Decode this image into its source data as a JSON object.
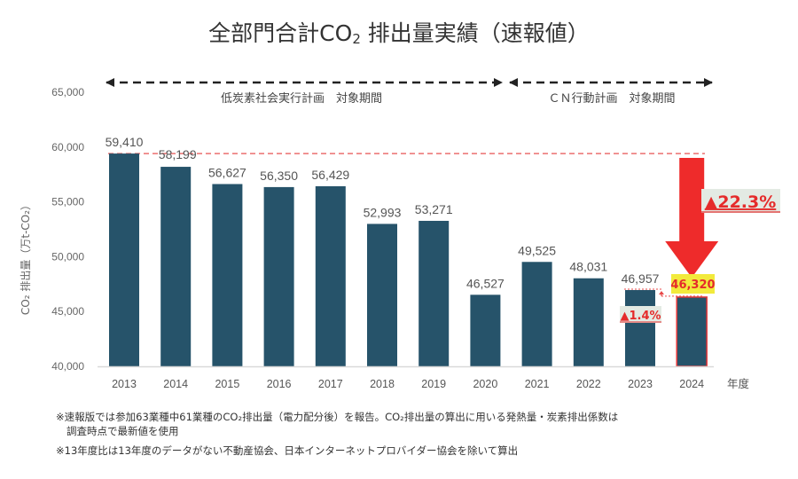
{
  "title": {
    "prefix": "全部門合計CO",
    "subscript": "2",
    "suffix": " 排出量実績（速報値）"
  },
  "chart_data": {
    "type": "bar",
    "title": "全部門合計CO2排出量実績（速報値）",
    "xlabel": "年度",
    "ylabel": "CO₂ 排出量（万t-CO₂）",
    "ylim": [
      40000,
      65000
    ],
    "yticks": [
      40000,
      45000,
      50000,
      55000,
      60000,
      65000
    ],
    "ytick_labels": [
      "40,000",
      "45,000",
      "50,000",
      "55,000",
      "60,000",
      "65,000"
    ],
    "grid": false,
    "categories": [
      "2013",
      "2014",
      "2015",
      "2016",
      "2017",
      "2018",
      "2019",
      "2020",
      "2021",
      "2022",
      "2023",
      "2024"
    ],
    "values": [
      59410,
      58199,
      56627,
      56350,
      56429,
      52993,
      53271,
      46527,
      49525,
      48031,
      46957,
      46320
    ],
    "value_labels": [
      "59,410",
      "58,199",
      "56,627",
      "56,350",
      "56,429",
      "52,993",
      "53,271",
      "46,527",
      "49,525",
      "48,031",
      "46,957",
      "46,320"
    ],
    "bar_color": "#26536a",
    "highlight_index": 11,
    "highlight_border_color": "#e8393a",
    "highlight_label_bg": "#f2ea3c",
    "highlight_label_color": "#e52b2b",
    "reference_line": {
      "value": 59410,
      "color": "#ec6f6f",
      "style": "dashed"
    },
    "periods": [
      {
        "label": "低炭素社会実行計画　対象期間",
        "from": "2013",
        "to": "2020"
      },
      {
        "label": "ＣＮ行動計画　対象期間",
        "from": "2021",
        "to": "2024"
      }
    ],
    "annotations": [
      {
        "text": "▲22.3%",
        "meaning": "reduction 2024 vs 2013",
        "color": "#e52b2b",
        "bg": "#e3eae3"
      },
      {
        "text": "▲1.4%",
        "meaning": "reduction 2024 vs 2023",
        "color": "#e52b2b",
        "bg": "#e3eae3"
      }
    ],
    "arrow_color": "#ee2b2b"
  },
  "notes": [
    "※速報版では参加63業種中61業種のCO₂排出量（電力配分後）を報告。CO₂排出量の算出に用いる発熱量・炭素排出係数は",
    "調査時点で最新値を使用",
    "※13年度比は13年度のデータがない不動産協会、日本インターネットプロバイダー協会を除いて算出"
  ]
}
